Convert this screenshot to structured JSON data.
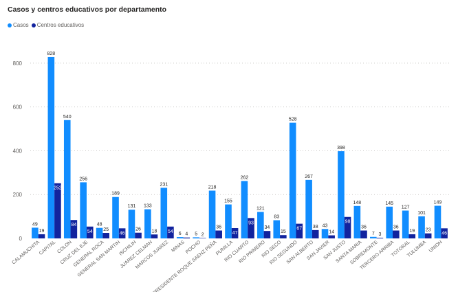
{
  "chart_data": {
    "type": "bar",
    "title": "Casos y centros educativos por departamento",
    "xlabel": "",
    "ylabel": "",
    "ylim": [
      0,
      900
    ],
    "yticks": [
      0,
      200,
      400,
      600,
      800
    ],
    "grid": true,
    "legend_position": "top-left",
    "categories": [
      "CALAMUCHITA",
      "CAPITAL",
      "COLON",
      "CRUZ DEL EJE",
      "GENERAL ROCA",
      "GENERAL SAN MARTIN",
      "ISCHILIN",
      "JUAREZ CELMAN",
      "MARCOS JUAREZ",
      "MINAS",
      "POCHO",
      "PRESIDENTE ROQUE SAENZ PEÑA",
      "PUNILLA",
      "RIO CUARTO",
      "RIO PRIMERO",
      "RIO SECO",
      "RIO SEGUNDO",
      "SAN ALBERTO",
      "SAN JAVIER",
      "SAN JUSTO",
      "SANTA MARIA",
      "SOBREMONTE",
      "TERCERO ARRIBA",
      "TOTORAL",
      "TULUMBA",
      "UNION"
    ],
    "series": [
      {
        "name": "Casos",
        "color": "#118dff",
        "values": [
          49,
          828,
          540,
          256,
          48,
          189,
          131,
          133,
          231,
          6,
          5,
          218,
          155,
          262,
          121,
          83,
          528,
          267,
          43,
          398,
          148,
          7,
          145,
          127,
          101,
          149
        ]
      },
      {
        "name": "Centros educativos",
        "color": "#12239e",
        "values": [
          19,
          252,
          84,
          54,
          25,
          46,
          26,
          18,
          54,
          4,
          2,
          36,
          47,
          93,
          34,
          15,
          67,
          38,
          14,
          98,
          36,
          3,
          36,
          19,
          23,
          46
        ]
      }
    ]
  }
}
